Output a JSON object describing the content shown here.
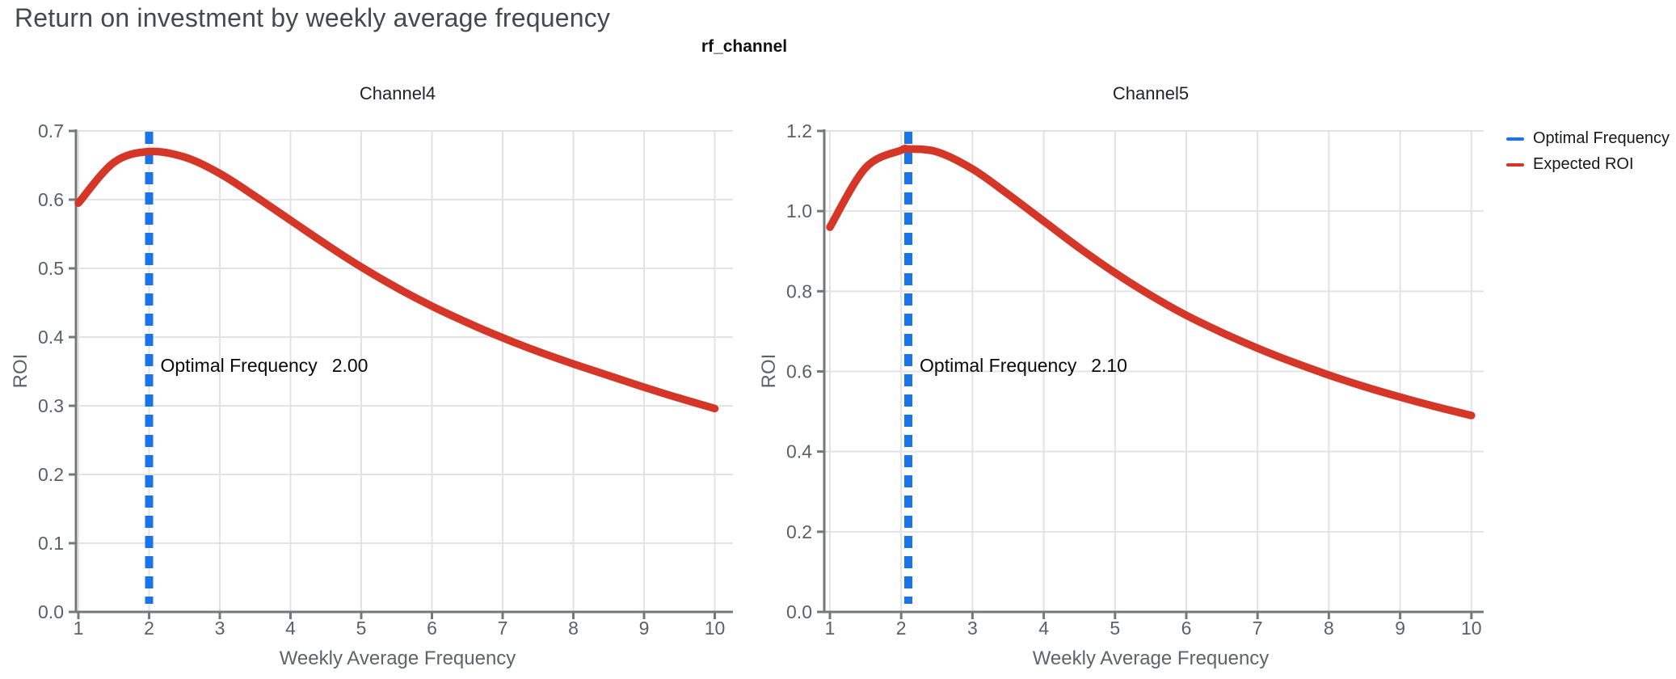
{
  "page": {
    "title": "Return on investment by weekly average frequency"
  },
  "facet_title": "rf_channel",
  "legend": [
    {
      "label": "Optimal Frequency",
      "color": "#1a73e8"
    },
    {
      "label": "Expected ROI",
      "color": "#d43628"
    }
  ],
  "colors": {
    "curve_red": "#d43628",
    "optimal_blue": "#1a73e8",
    "gridline": "#e2e3e4",
    "axis": "#74787c",
    "tick_label": "#5c6064",
    "annotation": "#0a0a0a"
  },
  "chart_data": [
    {
      "type": "line",
      "title": "Channel4",
      "xlabel": "Weekly Average Frequency",
      "ylabel": "ROI",
      "xlim": [
        1,
        10
      ],
      "ylim": [
        0,
        0.7
      ],
      "xticks": [
        1,
        2,
        3,
        4,
        5,
        6,
        7,
        8,
        9,
        10
      ],
      "yticks": [
        "0.0",
        "0.1",
        "0.2",
        "0.3",
        "0.4",
        "0.5",
        "0.6",
        "0.7"
      ],
      "ytick_values": [
        0,
        0.1,
        0.2,
        0.3,
        0.4,
        0.5,
        0.6,
        0.7
      ],
      "grid": true,
      "series": [
        {
          "name": "Expected ROI",
          "x": [
            1,
            1.5,
            2,
            2.5,
            3,
            3.5,
            4,
            4.5,
            5,
            5.5,
            6,
            6.5,
            7,
            7.5,
            8,
            8.5,
            9,
            9.5,
            10
          ],
          "y": [
            0.595,
            0.654,
            0.67,
            0.662,
            0.638,
            0.605,
            0.57,
            0.535,
            0.502,
            0.472,
            0.445,
            0.421,
            0.399,
            0.379,
            0.361,
            0.344,
            0.327,
            0.311,
            0.296
          ]
        }
      ],
      "optimal_x": 2.0,
      "annotation": {
        "label": "Optimal Frequency",
        "value": "2.00"
      }
    },
    {
      "type": "line",
      "title": "Channel5",
      "xlabel": "Weekly Average Frequency",
      "ylabel": "ROI",
      "xlim": [
        1,
        10
      ],
      "ylim": [
        0,
        1.2
      ],
      "xticks": [
        1,
        2,
        3,
        4,
        5,
        6,
        7,
        8,
        9,
        10
      ],
      "yticks": [
        "0.0",
        "0.2",
        "0.4",
        "0.6",
        "0.8",
        "1.0",
        "1.2"
      ],
      "ytick_values": [
        0,
        0.2,
        0.4,
        0.6,
        0.8,
        1.0,
        1.2
      ],
      "grid": true,
      "series": [
        {
          "name": "Expected ROI",
          "x": [
            1,
            1.5,
            2,
            2.1,
            2.5,
            3,
            3.5,
            4,
            4.5,
            5,
            5.5,
            6,
            6.5,
            7,
            7.5,
            8,
            8.5,
            9,
            9.5,
            10
          ],
          "y": [
            0.96,
            1.108,
            1.152,
            1.155,
            1.148,
            1.105,
            1.042,
            0.975,
            0.908,
            0.846,
            0.79,
            0.74,
            0.697,
            0.658,
            0.623,
            0.591,
            0.562,
            0.536,
            0.512,
            0.49
          ]
        }
      ],
      "optimal_x": 2.1,
      "annotation": {
        "label": "Optimal Frequency",
        "value": "2.10"
      }
    }
  ]
}
